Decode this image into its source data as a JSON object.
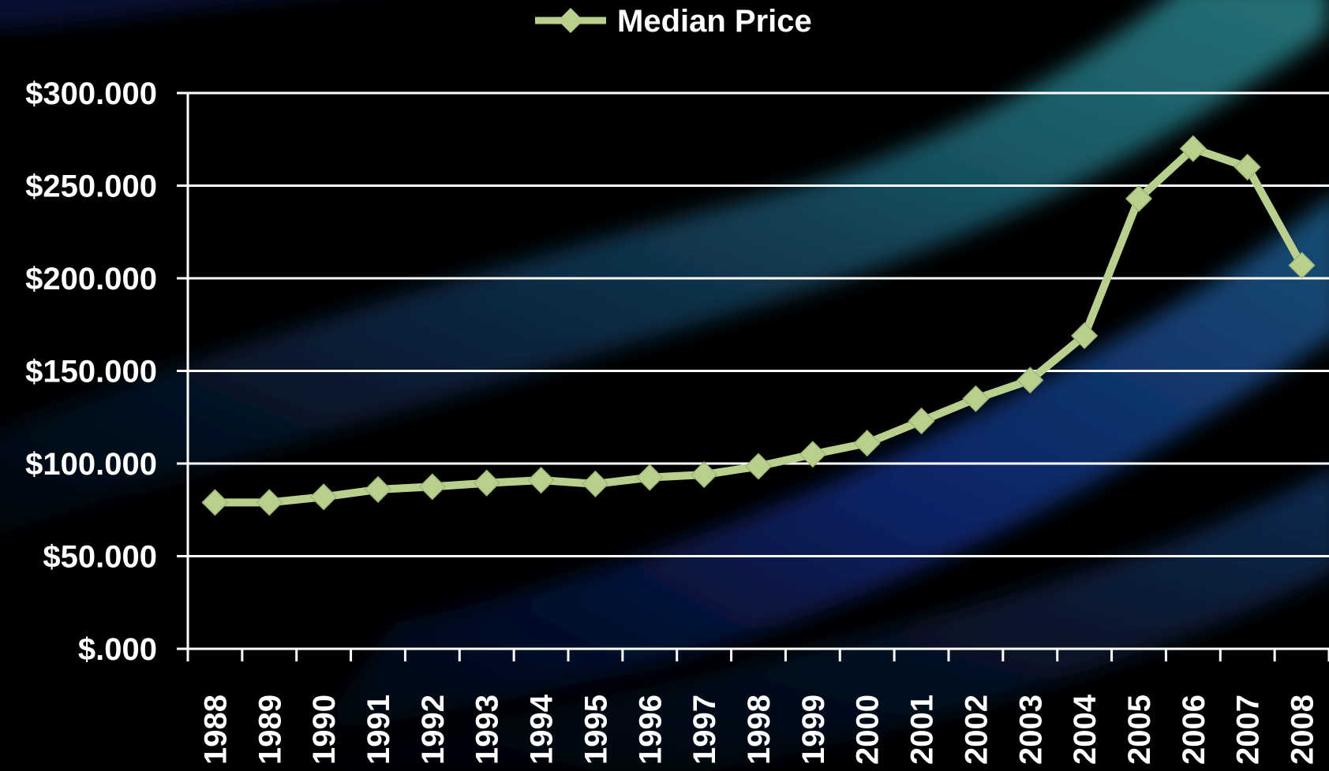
{
  "chart_data": {
    "type": "line",
    "title": "",
    "xlabel": "",
    "ylabel": "",
    "categories": [
      "1988",
      "1989",
      "1990",
      "1991",
      "1992",
      "1993",
      "1994",
      "1995",
      "1996",
      "1997",
      "1998",
      "1999",
      "2000",
      "2001",
      "2002",
      "2003",
      "2004",
      "2005",
      "2006",
      "2007",
      "2008"
    ],
    "series": [
      {
        "name": "Median Price",
        "values": [
          79000,
          79000,
          82000,
          86000,
          87500,
          89500,
          91000,
          89000,
          92500,
          94000,
          98500,
          105000,
          111000,
          123000,
          135000,
          145000,
          169000,
          243000,
          270000,
          260000,
          207000
        ],
        "color": "#b8cf8e"
      }
    ],
    "ylim": [
      0,
      300000
    ],
    "yticks": [
      0,
      50000,
      100000,
      150000,
      200000,
      250000,
      300000
    ],
    "ytick_labels": [
      "$.000",
      "$50.000",
      "$100.000",
      "$150.000",
      "$200.000",
      "$250.000",
      "$300.000"
    ],
    "grid": true,
    "legend_position": "top-center",
    "marker": "diamond"
  },
  "colors": {
    "background": "#000000",
    "grid": "#ffffff",
    "axis": "#ffffff",
    "text": "#ffffff",
    "band_teal": "#1f6f78",
    "band_blue": "#123a8a"
  }
}
